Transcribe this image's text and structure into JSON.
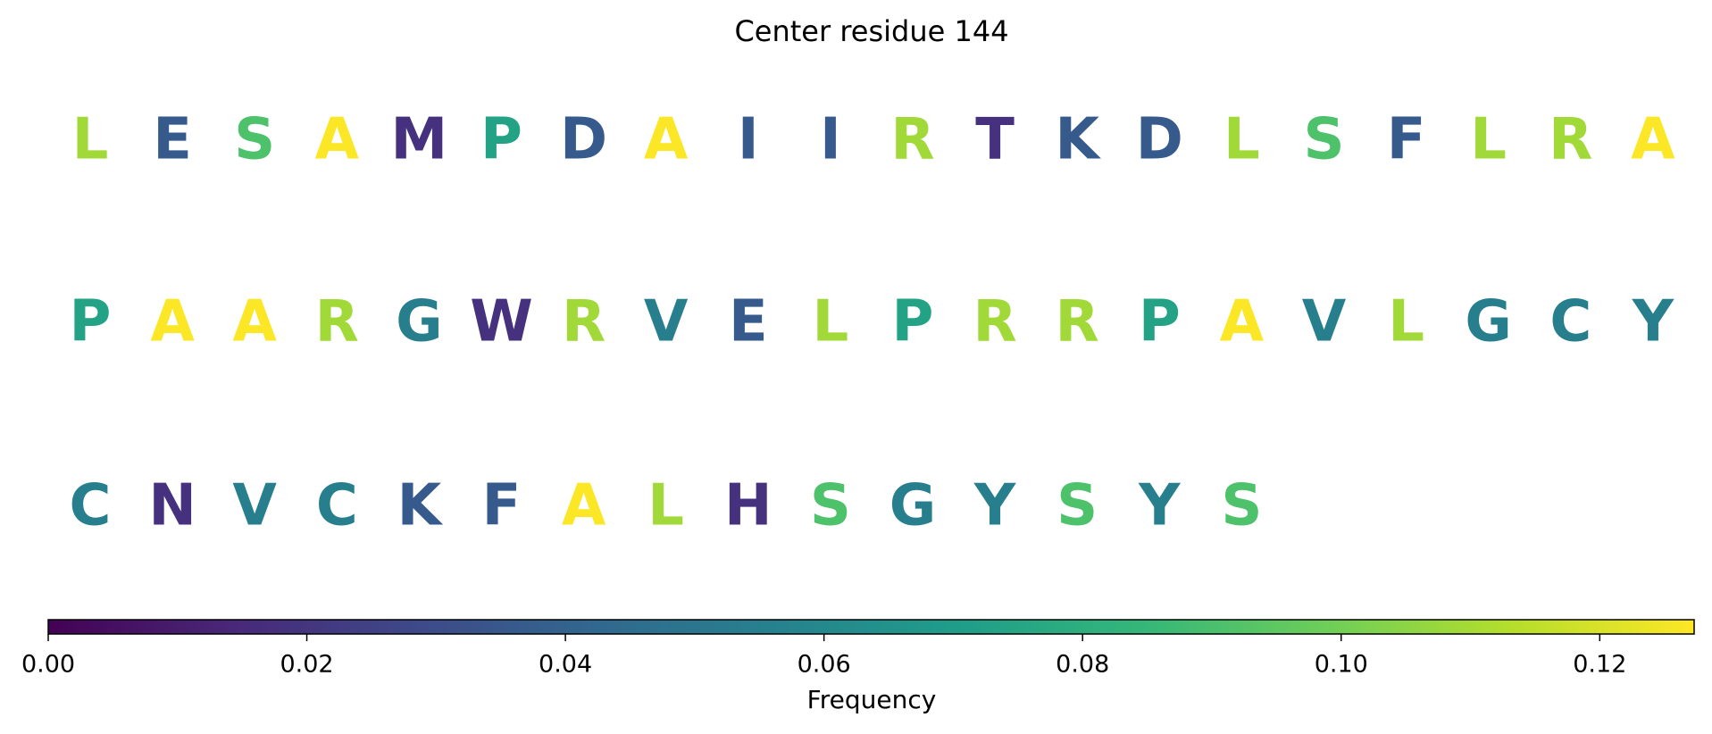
{
  "chart_data": {
    "type": "sequence",
    "title": "Center residue 144",
    "letters": [
      "L",
      "E",
      "S",
      "A",
      "M",
      "P",
      "D",
      "A",
      "I",
      "I",
      "R",
      "T",
      "K",
      "D",
      "L",
      "S",
      "F",
      "L",
      "R",
      "A",
      "P",
      "A",
      "A",
      "R",
      "G",
      "W",
      "R",
      "V",
      "E",
      "L",
      "P",
      "R",
      "R",
      "P",
      "A",
      "V",
      "L",
      "G",
      "C",
      "Y",
      "C",
      "N",
      "V",
      "C",
      "K",
      "F",
      "A",
      "L",
      "H",
      "S",
      "G",
      "Y",
      "S",
      "Y",
      "S"
    ],
    "values": [
      0.109,
      0.036,
      0.091,
      0.127,
      0.018,
      0.073,
      0.036,
      0.127,
      0.036,
      0.036,
      0.109,
      0.018,
      0.036,
      0.036,
      0.109,
      0.091,
      0.036,
      0.109,
      0.109,
      0.127,
      0.073,
      0.127,
      0.127,
      0.109,
      0.055,
      0.018,
      0.109,
      0.055,
      0.036,
      0.109,
      0.073,
      0.109,
      0.109,
      0.073,
      0.127,
      0.055,
      0.109,
      0.055,
      0.055,
      0.055,
      0.055,
      0.018,
      0.055,
      0.055,
      0.036,
      0.036,
      0.127,
      0.109,
      0.018,
      0.091,
      0.055,
      0.055,
      0.091,
      0.055,
      0.091
    ],
    "colormap": [
      "#440154",
      "#482878",
      "#3e4989",
      "#31688e",
      "#26828e",
      "#1f9e89",
      "#35b779",
      "#6ece58",
      "#b5de2b",
      "#fde725"
    ],
    "xlabel": "Frequency",
    "xlim": [
      0,
      0.1273
    ],
    "xticks": [
      {
        "value": 0,
        "label": "0.00"
      },
      {
        "value": 0.02,
        "label": "0.02"
      },
      {
        "value": 0.04,
        "label": "0.04"
      },
      {
        "value": 0.06,
        "label": "0.06"
      },
      {
        "value": 0.08,
        "label": "0.08"
      },
      {
        "value": 0.1,
        "label": "0.10"
      },
      {
        "value": 0.12,
        "label": "0.12"
      }
    ]
  }
}
